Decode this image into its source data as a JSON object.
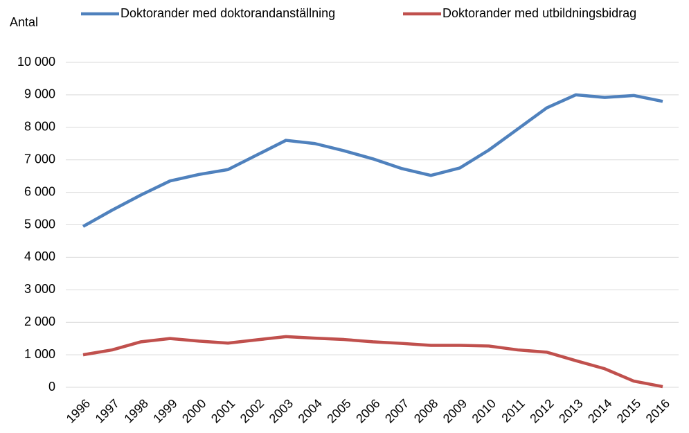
{
  "chart_data": {
    "type": "line",
    "y_label": "Antal",
    "categories": [
      "1996",
      "1997",
      "1998",
      "1999",
      "2000",
      "2001",
      "2002",
      "2003",
      "2004",
      "2005",
      "2006",
      "2007",
      "2008",
      "2009",
      "2010",
      "2011",
      "2012",
      "2013",
      "2014",
      "2015",
      "2016"
    ],
    "series": [
      {
        "name": "Doktorander med doktorandanställning",
        "color": "#4f81bd",
        "values": [
          4950,
          5450,
          5920,
          6350,
          6550,
          6700,
          7150,
          7600,
          7500,
          7280,
          7030,
          6730,
          6520,
          6750,
          7300,
          7950,
          8600,
          9000,
          8920,
          8980,
          8800
        ]
      },
      {
        "name": "Doktorander med utbildningsbidrag",
        "color": "#c0504d",
        "values": [
          1000,
          1150,
          1400,
          1500,
          1420,
          1360,
          1460,
          1560,
          1510,
          1470,
          1400,
          1350,
          1290,
          1290,
          1270,
          1150,
          1080,
          820,
          570,
          190,
          20
        ]
      }
    ],
    "ylim": [
      0,
      10000
    ],
    "yticks": [
      0,
      {
        "value": 1000,
        "label": "1 000"
      },
      {
        "value": 2000,
        "label": "2 000"
      },
      {
        "value": 3000,
        "label": "3 000"
      },
      {
        "value": 4000,
        "label": "4 000"
      },
      {
        "value": 5000,
        "label": "5 000"
      },
      {
        "value": 6000,
        "label": "6 000"
      },
      {
        "value": 7000,
        "label": "7 000"
      },
      {
        "value": 8000,
        "label": "8 000"
      },
      {
        "value": 9000,
        "label": "9 000"
      },
      {
        "value": 10000,
        "label": "10 000"
      }
    ],
    "grid": true,
    "legend": "top"
  }
}
